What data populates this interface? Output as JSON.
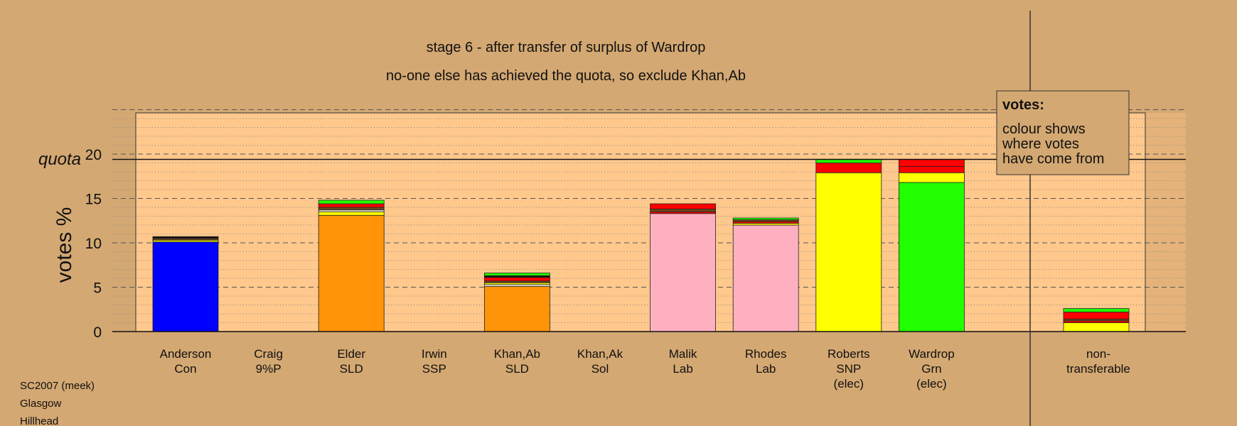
{
  "chart_data": {
    "type": "bar",
    "stacked": true,
    "title": "stage 6 - after transfer of surplus of Wardrop",
    "subtitle": "no-one else has achieved the quota, so exclude Khan,Ab",
    "ylabel": "votes %",
    "ylim": [
      0,
      25
    ],
    "yticks": [
      0,
      5,
      10,
      15,
      20
    ],
    "grid": "dotted every 1, dashed every 5",
    "quota": {
      "label": "quota",
      "value": 19.4
    },
    "colors": {
      "Con": "#0000ff",
      "SLD": "#ff9408",
      "Lab": "#ffb0c0",
      "SNP": "#ffff00",
      "Grn": "#22ff00",
      "red": "#ff0000",
      "brown": "#6b4a1e",
      "dark": "#111111",
      "white": "#f2f2f2"
    },
    "bars": [
      {
        "name": "Anderson",
        "party": "Con",
        "lines": [
          "Anderson",
          "Con"
        ],
        "segments": [
          {
            "value": 10.1,
            "color": "#0000ff"
          },
          {
            "value": 0.2,
            "color": "#ffff00"
          },
          {
            "value": 0.2,
            "color": "#6b4a1e"
          },
          {
            "value": 0.2,
            "color": "#111111"
          }
        ]
      },
      {
        "name": "Craig",
        "party": "9%P",
        "lines": [
          "Craig",
          "9%P"
        ],
        "segments": []
      },
      {
        "name": "Elder",
        "party": "SLD",
        "lines": [
          "Elder",
          "SLD"
        ],
        "segments": [
          {
            "value": 13.1,
            "color": "#ff9408"
          },
          {
            "value": 0.4,
            "color": "#ffff00"
          },
          {
            "value": 0.2,
            "color": "#f2f2f2"
          },
          {
            "value": 0.3,
            "color": "#6b4a1e"
          },
          {
            "value": 0.4,
            "color": "#ff0000"
          },
          {
            "value": 0.4,
            "color": "#22ff00"
          }
        ]
      },
      {
        "name": "Irwin",
        "party": "SSP",
        "lines": [
          "Irwin",
          "SSP"
        ],
        "segments": []
      },
      {
        "name": "Khan,Ab",
        "party": "SLD",
        "lines": [
          "Khan,Ab",
          "SLD"
        ],
        "segments": [
          {
            "value": 5.1,
            "color": "#ff9408"
          },
          {
            "value": 0.2,
            "color": "#f2f2f2"
          },
          {
            "value": 0.2,
            "color": "#ffff00"
          },
          {
            "value": 0.2,
            "color": "#6b4a1e"
          },
          {
            "value": 0.4,
            "color": "#ff0000"
          },
          {
            "value": 0.2,
            "color": "#111111"
          },
          {
            "value": 0.3,
            "color": "#22ff00"
          }
        ]
      },
      {
        "name": "Khan,Ak",
        "party": "Sol",
        "lines": [
          "Khan,Ak",
          "Sol"
        ],
        "segments": []
      },
      {
        "name": "Malik",
        "party": "Lab",
        "lines": [
          "Malik",
          "Lab"
        ],
        "segments": [
          {
            "value": 13.3,
            "color": "#ffb0c0"
          },
          {
            "value": 0.2,
            "color": "#ff0000"
          },
          {
            "value": 0.3,
            "color": "#6b4a1e"
          },
          {
            "value": 0.6,
            "color": "#ff0000"
          }
        ]
      },
      {
        "name": "Rhodes",
        "party": "Lab",
        "lines": [
          "Rhodes",
          "Lab"
        ],
        "segments": [
          {
            "value": 12.0,
            "color": "#ffb0c0"
          },
          {
            "value": 0.2,
            "color": "#ffff00"
          },
          {
            "value": 0.2,
            "color": "#ff0000"
          },
          {
            "value": 0.2,
            "color": "#6b4a1e"
          },
          {
            "value": 0.2,
            "color": "#22ff00"
          }
        ]
      },
      {
        "name": "Roberts",
        "party": "SNP",
        "lines": [
          "Roberts",
          "SNP",
          "(elec)"
        ],
        "segments": [
          {
            "value": 17.9,
            "color": "#ffff00"
          },
          {
            "value": 1.1,
            "color": "#ff0000"
          },
          {
            "value": 0.4,
            "color": "#22ff00"
          }
        ]
      },
      {
        "name": "Wardrop",
        "party": "Grn",
        "lines": [
          "Wardrop",
          "Grn",
          "(elec)"
        ],
        "segments": [
          {
            "value": 16.8,
            "color": "#22ff00"
          },
          {
            "value": 1.1,
            "color": "#ffff00"
          },
          {
            "value": 0.7,
            "color": "#ff0000"
          },
          {
            "value": 0.8,
            "color": "#ff0000"
          }
        ]
      }
    ],
    "nontransferable": {
      "lines": [
        "non-",
        "transferable"
      ],
      "segments": [
        {
          "value": 1.0,
          "color": "#ffff00"
        },
        {
          "value": 0.2,
          "color": "#ff0000"
        },
        {
          "value": 0.2,
          "color": "#6b4a1e"
        },
        {
          "value": 0.8,
          "color": "#ff0000"
        },
        {
          "value": 0.4,
          "color": "#22ff00"
        }
      ]
    }
  },
  "legend": {
    "title": "votes:",
    "lines": [
      "colour shows",
      "where votes",
      "have come from"
    ]
  },
  "footer": [
    "SC2007 (meek)",
    "Glasgow",
    "Hillhead"
  ]
}
